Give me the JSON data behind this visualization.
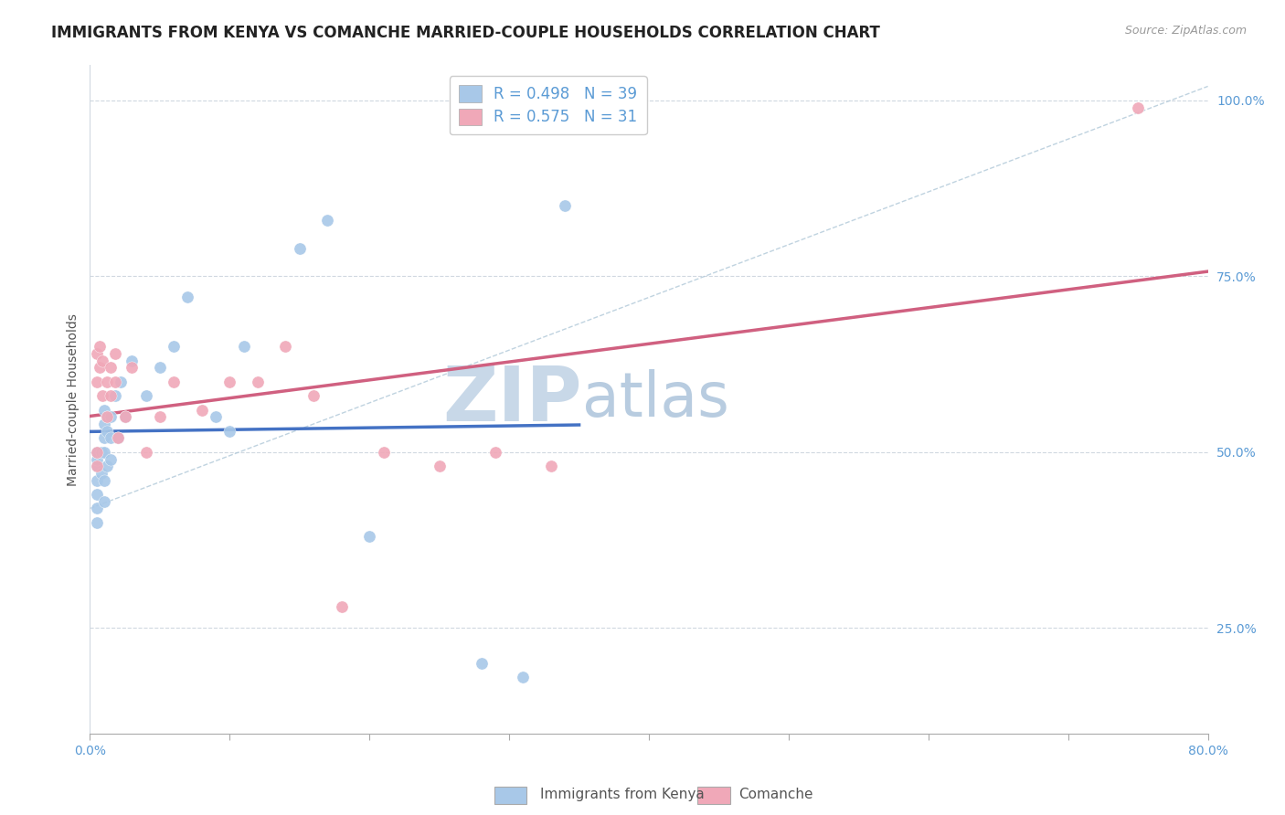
{
  "title": "IMMIGRANTS FROM KENYA VS COMANCHE MARRIED-COUPLE HOUSEHOLDS CORRELATION CHART",
  "source_text": "Source: ZipAtlas.com",
  "ylabel": "Married-couple Households",
  "xlim": [
    0.0,
    0.8
  ],
  "ylim": [
    0.1,
    1.05
  ],
  "xtick_positions": [
    0.0,
    0.1,
    0.2,
    0.3,
    0.4,
    0.5,
    0.6,
    0.7,
    0.8
  ],
  "xtick_labels": [
    "0.0%",
    "",
    "",
    "",
    "",
    "",
    "",
    "",
    "80.0%"
  ],
  "ytick_positions": [
    0.25,
    0.5,
    0.75,
    1.0
  ],
  "ytick_labels": [
    "25.0%",
    "50.0%",
    "75.0%",
    "100.0%"
  ],
  "grid_color": "#d0d8e0",
  "background_color": "#ffffff",
  "watermark_text1": "ZIP",
  "watermark_text2": "atlas",
  "watermark_color1": "#c8d8e8",
  "watermark_color2": "#b8cce0",
  "legend_R1": "R = 0.498",
  "legend_N1": "N = 39",
  "legend_R2": "R = 0.575",
  "legend_N2": "N = 31",
  "blue_dot_color": "#a8c8e8",
  "pink_dot_color": "#f0a8b8",
  "blue_line_color": "#4472c4",
  "pink_line_color": "#d06080",
  "ref_line_color": "#b0c8d8",
  "label_color": "#5b9bd5",
  "title_color": "#222222",
  "ylabel_color": "#555555",
  "legend_label_color": "#555555",
  "kenya_x": [
    0.005,
    0.005,
    0.005,
    0.005,
    0.005,
    0.005,
    0.005,
    0.008,
    0.008,
    0.01,
    0.01,
    0.01,
    0.01,
    0.01,
    0.01,
    0.012,
    0.012,
    0.012,
    0.015,
    0.015,
    0.015,
    0.018,
    0.02,
    0.022,
    0.025,
    0.03,
    0.04,
    0.05,
    0.06,
    0.07,
    0.09,
    0.1,
    0.11,
    0.15,
    0.17,
    0.2,
    0.28,
    0.31,
    0.34
  ],
  "kenya_y": [
    0.48,
    0.49,
    0.5,
    0.46,
    0.44,
    0.42,
    0.4,
    0.47,
    0.5,
    0.5,
    0.52,
    0.54,
    0.56,
    0.46,
    0.43,
    0.55,
    0.53,
    0.48,
    0.55,
    0.52,
    0.49,
    0.58,
    0.52,
    0.6,
    0.55,
    0.63,
    0.58,
    0.62,
    0.65,
    0.72,
    0.55,
    0.53,
    0.65,
    0.79,
    0.83,
    0.38,
    0.2,
    0.18,
    0.85
  ],
  "comanche_x": [
    0.005,
    0.005,
    0.005,
    0.005,
    0.007,
    0.007,
    0.009,
    0.009,
    0.012,
    0.012,
    0.015,
    0.015,
    0.018,
    0.018,
    0.02,
    0.025,
    0.03,
    0.04,
    0.05,
    0.06,
    0.08,
    0.1,
    0.12,
    0.14,
    0.16,
    0.18,
    0.21,
    0.25,
    0.29,
    0.33,
    0.75
  ],
  "comanche_y": [
    0.6,
    0.64,
    0.5,
    0.48,
    0.65,
    0.62,
    0.63,
    0.58,
    0.6,
    0.55,
    0.62,
    0.58,
    0.64,
    0.6,
    0.52,
    0.55,
    0.62,
    0.5,
    0.55,
    0.6,
    0.56,
    0.6,
    0.6,
    0.65,
    0.58,
    0.28,
    0.5,
    0.48,
    0.5,
    0.48,
    0.99
  ],
  "blue_trend_x": [
    0.0,
    0.35
  ],
  "pink_trend_x": [
    0.0,
    0.8
  ],
  "legend_label1": "Immigrants from Kenya",
  "legend_label2": "Comanche"
}
